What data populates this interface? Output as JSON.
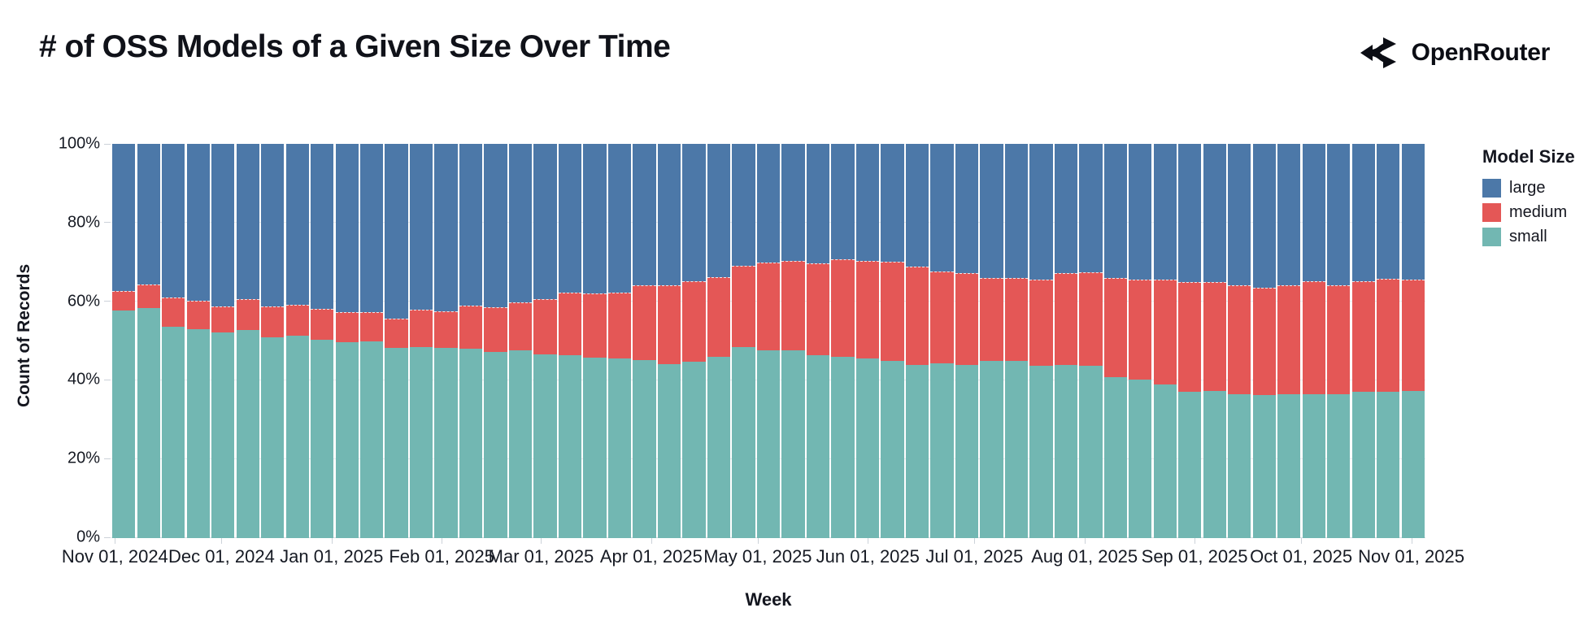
{
  "header": {
    "title": "# of OSS Models of a Given Size Over Time",
    "brand": "OpenRouter"
  },
  "chart_data": {
    "type": "bar",
    "variant": "stacked-normalized",
    "title": "# of OSS Models of a Given Size Over Time",
    "xlabel": "Week",
    "ylabel": "Count of Records",
    "ylim": [
      0,
      100
    ],
    "y_tick_labels": [
      "0%",
      "20%",
      "40%",
      "60%",
      "80%",
      "100%"
    ],
    "grid": true,
    "legend_position": "right",
    "legend": {
      "title": "Model Size",
      "entries": [
        {
          "label": "large",
          "color": "#4c78a8"
        },
        {
          "label": "medium",
          "color": "#e45756"
        },
        {
          "label": "small",
          "color": "#72b7b2"
        }
      ]
    },
    "x_axis": {
      "title": "Week",
      "unit": "week",
      "bar_count": 53,
      "tick_labels": [
        "Nov 01, 2024",
        "Dec 01, 2024",
        "Jan 01, 2025",
        "Feb 01, 2025",
        "Mar 01, 2025",
        "Apr 01, 2025",
        "May 01, 2025",
        "Jun 01, 2025",
        "Jul 01, 2025",
        "Aug 01, 2025",
        "Sep 01, 2025",
        "Oct 01, 2025",
        "Nov 01, 2025"
      ],
      "tick_day_offsets": [
        0,
        30,
        61,
        92,
        120,
        151,
        181,
        212,
        242,
        273,
        304,
        334,
        365
      ],
      "axis_day_span": [
        -1,
        369
      ]
    },
    "stack_order_bottom_to_top": [
      "small",
      "medium",
      "large"
    ],
    "series": [
      {
        "name": "small",
        "color": "#72b7b2",
        "values": [
          57.9,
          58.4,
          53.7,
          53.2,
          52.3,
          52.8,
          51.1,
          51.5,
          50.5,
          49.7,
          49.9,
          48.3,
          48.6,
          48.3,
          48.1,
          47.4,
          47.7,
          46.7,
          46.4,
          45.8,
          45.7,
          45.3,
          44.3,
          44.8,
          46.0,
          48.6,
          47.8,
          47.8,
          46.4,
          46.0,
          45.7,
          45.0,
          44.1,
          44.5,
          44.0,
          45.0,
          45.0,
          43.8,
          44.1,
          43.8,
          40.9,
          40.2,
          39.1,
          37.1,
          37.4,
          36.5,
          36.4,
          36.6,
          36.5,
          36.5,
          37.2,
          37.1,
          37.4
        ]
      },
      {
        "name": "medium",
        "color": "#e45756",
        "values": [
          4.8,
          5.9,
          7.3,
          6.9,
          6.4,
          7.7,
          7.6,
          7.5,
          7.5,
          7.6,
          7.4,
          7.3,
          9.2,
          9.1,
          10.7,
          11.0,
          12.1,
          13.8,
          15.8,
          16.2,
          16.4,
          18.7,
          19.8,
          20.2,
          20.2,
          20.4,
          22.1,
          22.5,
          23.2,
          24.7,
          24.6,
          25.0,
          24.7,
          23.1,
          23.1,
          21.0,
          21.0,
          21.6,
          23.0,
          23.5,
          25.0,
          25.3,
          26.4,
          27.7,
          27.4,
          27.5,
          27.0,
          27.5,
          28.6,
          27.6,
          27.9,
          28.7,
          28.1
        ]
      },
      {
        "name": "large",
        "color": "#4c78a8",
        "values": [
          37.3,
          35.7,
          39.0,
          39.9,
          41.3,
          39.5,
          41.3,
          41.0,
          42.0,
          42.7,
          42.7,
          44.4,
          42.2,
          42.6,
          41.2,
          41.6,
          40.2,
          39.5,
          37.8,
          38.0,
          37.9,
          36.0,
          35.9,
          35.0,
          33.8,
          31.0,
          30.1,
          29.7,
          30.4,
          29.3,
          29.7,
          30.0,
          31.2,
          32.4,
          32.9,
          34.0,
          34.0,
          34.6,
          32.9,
          32.7,
          34.1,
          34.5,
          34.5,
          35.2,
          35.2,
          36.0,
          36.6,
          35.9,
          34.9,
          35.9,
          34.9,
          34.2,
          34.5
        ]
      }
    ]
  },
  "colors": {
    "large": "#4c78a8",
    "medium": "#e45756",
    "small": "#72b7b2",
    "gridline": "#e6e9ed",
    "axis_text": "#161a23",
    "title_text": "#101219"
  }
}
